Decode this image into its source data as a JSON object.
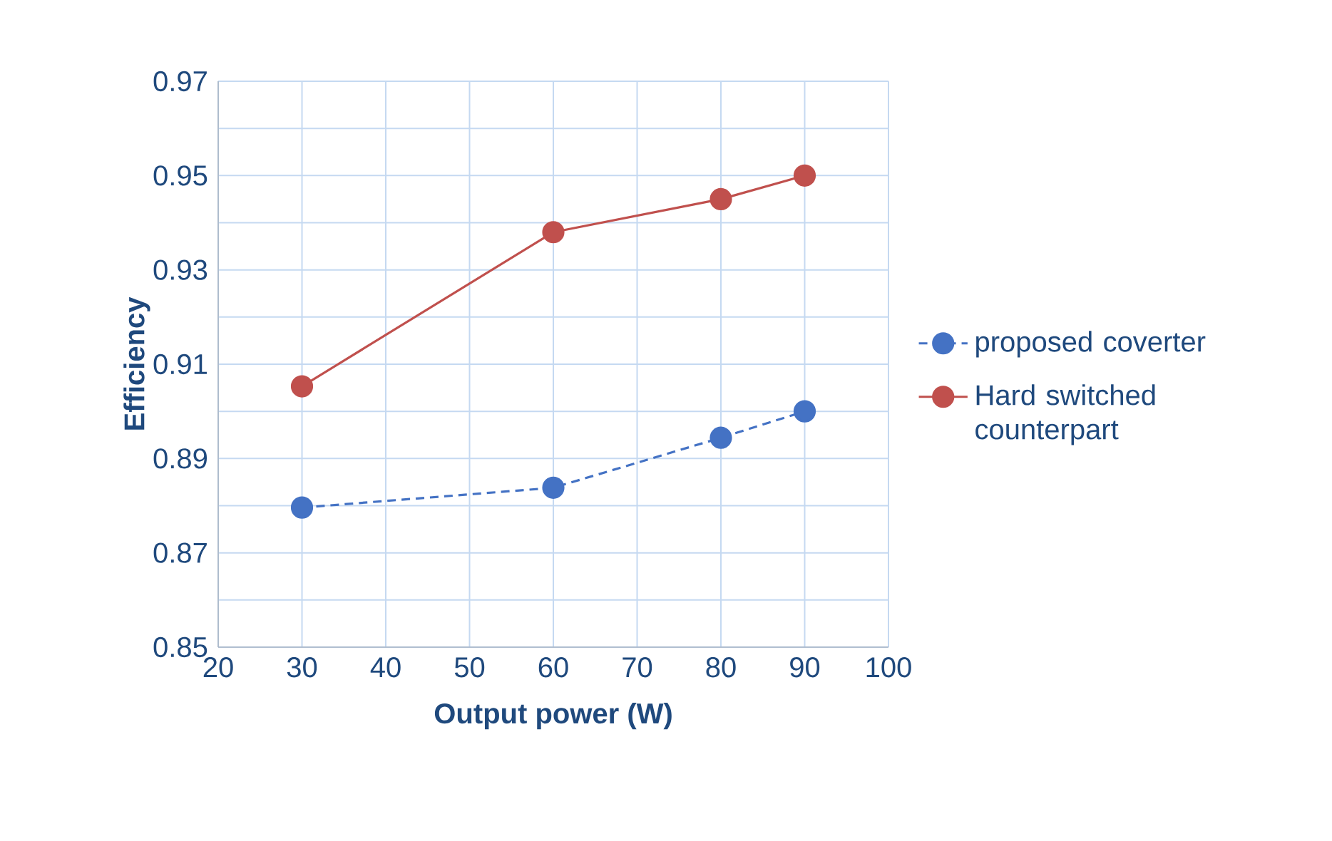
{
  "chart_data": {
    "type": "line",
    "xlabel": "Output power (W)",
    "ylabel": "Efficiency",
    "x": [
      30,
      60,
      80,
      90
    ],
    "series": [
      {
        "name": "proposed coverter",
        "color": "#4472c4",
        "line_style": "dashed",
        "values": [
          0.8796,
          0.8838,
          0.8944,
          0.9
        ]
      },
      {
        "name": "Hard switched counterpart",
        "color": "#c0504d",
        "line_style": "solid",
        "values": [
          0.9053,
          0.938,
          0.945,
          0.95
        ]
      }
    ],
    "xlim": [
      20,
      100
    ],
    "xticks": [
      20,
      30,
      40,
      50,
      60,
      70,
      80,
      90,
      100
    ],
    "ylim": [
      0.85,
      0.97
    ],
    "yticks": [
      0.85,
      {
        "value": 0.86,
        "label": null
      },
      0.87,
      {
        "value": 0.88,
        "label": null
      },
      0.89,
      {
        "value": 0.9,
        "label": null
      },
      0.91,
      {
        "value": 0.92,
        "label": null
      },
      0.93,
      {
        "value": 0.94,
        "label": null
      },
      0.95,
      {
        "value": 0.96,
        "label": null
      },
      0.97
    ],
    "grid": true,
    "legend": "right",
    "marker": "circle"
  }
}
